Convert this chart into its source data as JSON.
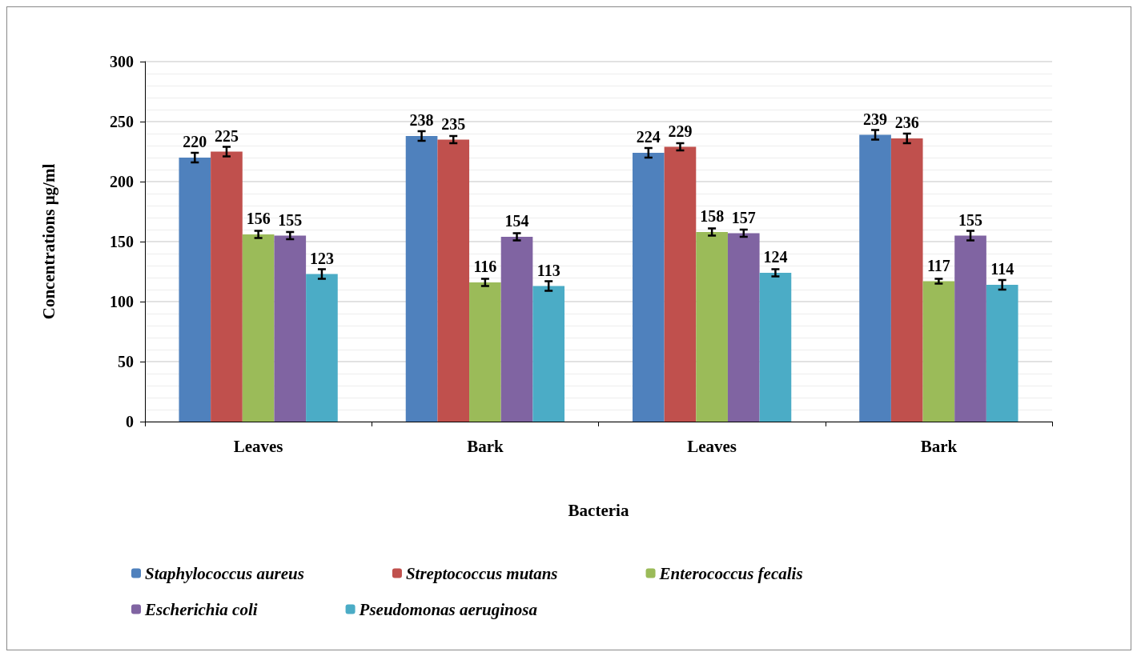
{
  "chart_data": {
    "type": "bar",
    "xlabel": "Bacteria",
    "ylabel": "Concentrations μg/ml",
    "categories": [
      "Leaves",
      "Bark",
      "Leaves",
      "Bark"
    ],
    "series": [
      {
        "name": "Staphylococcus aureus",
        "color": "#4f81bd",
        "values": [
          220,
          238,
          224,
          239
        ],
        "errors": [
          4,
          4,
          4,
          4
        ]
      },
      {
        "name": "Streptococcus mutans",
        "color": "#c0504d",
        "values": [
          225,
          235,
          229,
          236
        ],
        "errors": [
          4,
          3,
          3,
          4
        ]
      },
      {
        "name": "Enterococcus fecalis",
        "color": "#9bbb59",
        "values": [
          156,
          116,
          158,
          117
        ],
        "errors": [
          3,
          3,
          3,
          2
        ]
      },
      {
        "name": "Escherichia coli",
        "color": "#8064a2",
        "values": [
          155,
          154,
          157,
          155
        ],
        "errors": [
          3,
          3,
          3,
          4
        ]
      },
      {
        "name": "Pseudomonas aeruginosa",
        "color": "#4bacc6",
        "values": [
          123,
          113,
          124,
          114
        ],
        "errors": [
          4,
          4,
          3,
          4
        ]
      }
    ],
    "ylim": [
      0,
      300
    ],
    "yticks": [
      0,
      50,
      100,
      150,
      200,
      250,
      300
    ],
    "grid": "y",
    "legend": "bottom",
    "data_labels": true
  }
}
